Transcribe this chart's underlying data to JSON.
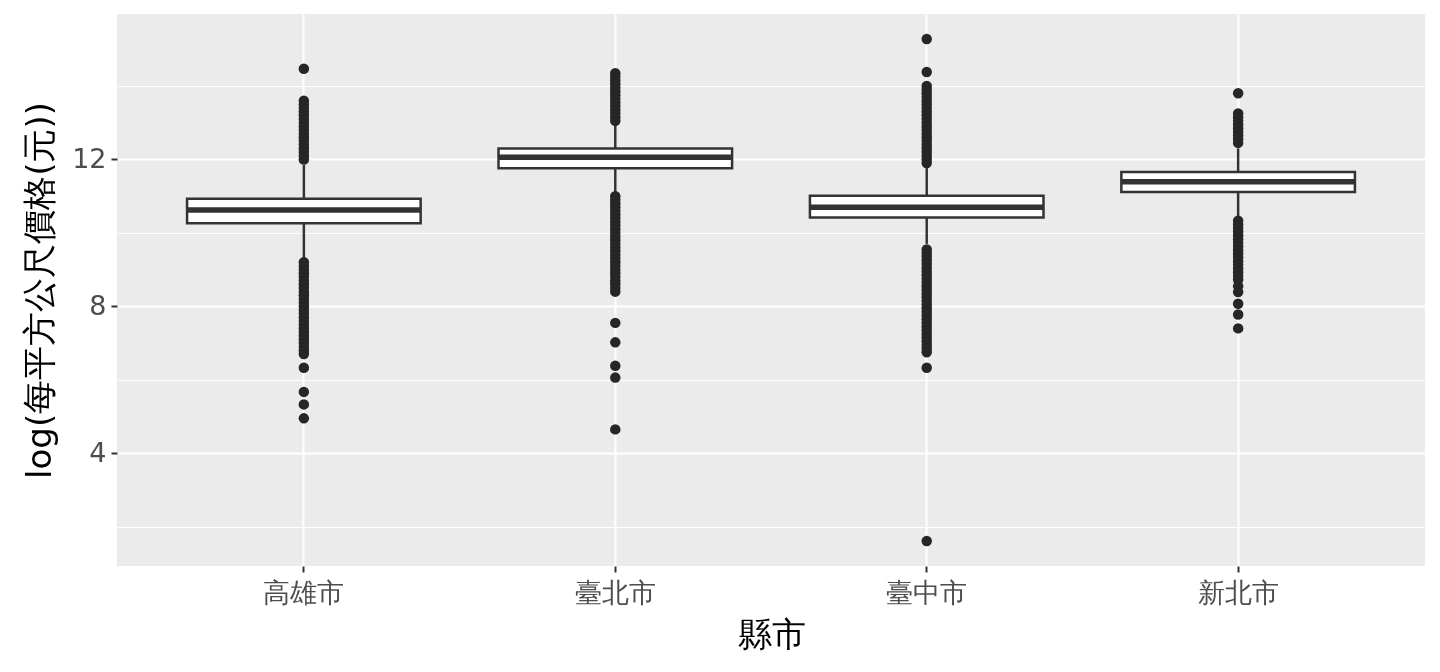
{
  "chart_data": {
    "type": "box",
    "xlabel": "縣市",
    "ylabel": "log(每平方公尺價格(元))",
    "color": "#333333",
    "grid": true,
    "categories": [
      "高雄市",
      "臺北市",
      "臺中市",
      "新北市"
    ],
    "boxes": [
      {
        "low": 9.3,
        "q1": 10.26,
        "median": 10.62,
        "q3": 10.93,
        "high": 11.85,
        "outliers": [
          14.47,
          13.6,
          13.5,
          13.4,
          13.3,
          13.2,
          13.1,
          13.0,
          12.9,
          12.8,
          12.7,
          12.6,
          12.5,
          12.4,
          12.3,
          12.2,
          12.1,
          12.0,
          9.2,
          9.1,
          9.0,
          8.9,
          8.8,
          8.7,
          8.6,
          8.5,
          8.4,
          8.3,
          8.2,
          8.1,
          8.0,
          7.9,
          7.8,
          7.7,
          7.6,
          7.5,
          7.4,
          7.3,
          7.2,
          7.1,
          7.0,
          6.9,
          6.8,
          6.7,
          6.33,
          5.67,
          5.33,
          4.95
        ]
      },
      {
        "low": 11.1,
        "q1": 11.76,
        "median": 12.06,
        "q3": 12.3,
        "high": 12.95,
        "outliers": [
          14.35,
          14.25,
          14.15,
          14.05,
          13.95,
          13.85,
          13.75,
          13.65,
          13.55,
          13.45,
          13.35,
          13.25,
          13.15,
          13.05,
          11.0,
          10.9,
          10.8,
          10.7,
          10.6,
          10.5,
          10.4,
          10.3,
          10.2,
          10.1,
          10.0,
          9.9,
          9.8,
          9.7,
          9.6,
          9.5,
          9.4,
          9.3,
          9.2,
          9.1,
          9.0,
          8.9,
          8.8,
          8.7,
          8.6,
          8.5,
          8.4,
          7.55,
          7.02,
          6.38,
          6.06,
          4.65
        ]
      },
      {
        "low": 9.7,
        "q1": 10.42,
        "median": 10.7,
        "q3": 11.01,
        "high": 11.8,
        "outliers": [
          15.28,
          14.38,
          14.0,
          13.9,
          13.8,
          13.7,
          13.6,
          13.5,
          13.4,
          13.3,
          13.2,
          13.1,
          13.0,
          12.9,
          12.8,
          12.7,
          12.6,
          12.5,
          12.4,
          12.3,
          12.2,
          12.1,
          12.0,
          11.9,
          9.55,
          9.45,
          9.35,
          9.25,
          9.15,
          9.05,
          8.95,
          8.85,
          8.75,
          8.65,
          8.55,
          8.45,
          8.35,
          8.25,
          8.15,
          8.05,
          7.95,
          7.85,
          7.75,
          7.65,
          7.55,
          7.45,
          7.35,
          7.25,
          7.15,
          7.05,
          6.95,
          6.85,
          6.75,
          6.33,
          1.61
        ]
      },
      {
        "low": 10.45,
        "q1": 11.11,
        "median": 11.39,
        "q3": 11.66,
        "high": 12.3,
        "outliers": [
          13.8,
          13.25,
          13.15,
          13.05,
          12.95,
          12.85,
          12.75,
          12.65,
          12.55,
          12.45,
          10.33,
          10.23,
          10.13,
          10.03,
          9.93,
          9.83,
          9.73,
          9.63,
          9.53,
          9.43,
          9.33,
          9.23,
          9.13,
          9.03,
          8.93,
          8.83,
          8.73,
          8.55,
          8.39,
          8.07,
          7.78,
          7.4
        ]
      }
    ],
    "ylim": [
      0.93,
      15.96
    ],
    "yticks": [
      {
        "value": 2,
        "label": null
      },
      4,
      {
        "value": 6,
        "label": null
      },
      8,
      {
        "value": 10,
        "label": null
      },
      12,
      {
        "value": 14,
        "label": null
      }
    ]
  }
}
